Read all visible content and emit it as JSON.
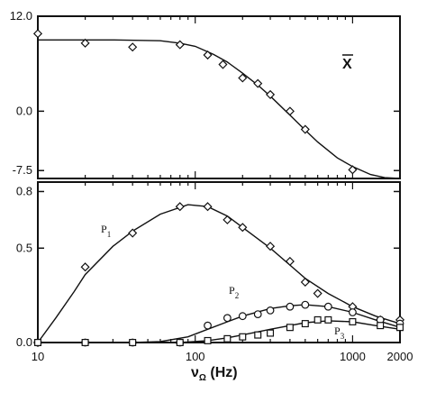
{
  "chart_data": [
    {
      "panel": "top",
      "type": "scatter",
      "x_scale": "log",
      "xlim": [
        10,
        2000
      ],
      "ylim": [
        -8.5,
        12.0
      ],
      "y_ticks": [
        {
          "value": 12.0,
          "label": "12.0"
        },
        {
          "value": 0.0,
          "label": "0.0"
        },
        {
          "value": -7.5,
          "label": "-7.5"
        }
      ],
      "series": [
        {
          "name": "X̄",
          "marker": "diamond",
          "points": [
            {
              "x": 10,
              "y": 9.8
            },
            {
              "x": 20,
              "y": 8.6
            },
            {
              "x": 40,
              "y": 8.1
            },
            {
              "x": 80,
              "y": 8.4
            },
            {
              "x": 120,
              "y": 7.1
            },
            {
              "x": 150,
              "y": 5.9
            },
            {
              "x": 200,
              "y": 4.2
            },
            {
              "x": 250,
              "y": 3.5
            },
            {
              "x": 300,
              "y": 2.1
            },
            {
              "x": 400,
              "y": 0.0
            },
            {
              "x": 500,
              "y": -2.3
            },
            {
              "x": 1000,
              "y": -7.4
            }
          ],
          "fit_curve": [
            {
              "x": 10,
              "y": 9.0
            },
            {
              "x": 30,
              "y": 9.0
            },
            {
              "x": 60,
              "y": 8.9
            },
            {
              "x": 80,
              "y": 8.6
            },
            {
              "x": 100,
              "y": 8.2
            },
            {
              "x": 130,
              "y": 7.2
            },
            {
              "x": 160,
              "y": 6.2
            },
            {
              "x": 200,
              "y": 4.8
            },
            {
              "x": 250,
              "y": 3.3
            },
            {
              "x": 300,
              "y": 1.9
            },
            {
              "x": 400,
              "y": -0.5
            },
            {
              "x": 500,
              "y": -2.4
            },
            {
              "x": 600,
              "y": -3.9
            },
            {
              "x": 800,
              "y": -5.9
            },
            {
              "x": 1000,
              "y": -7.0
            },
            {
              "x": 1300,
              "y": -8.0
            },
            {
              "x": 1600,
              "y": -8.4
            },
            {
              "x": 2000,
              "y": -8.5
            }
          ]
        }
      ]
    },
    {
      "panel": "bottom",
      "type": "scatter",
      "x_scale": "log",
      "xlim": [
        10,
        2000
      ],
      "ylim": [
        0.0,
        0.85
      ],
      "y_ticks": [
        {
          "value": 0.8,
          "label": "0.8"
        },
        {
          "value": 0.5,
          "label": "0.5"
        },
        {
          "value": 0.0,
          "label": "0.0"
        }
      ],
      "x_ticks": [
        {
          "value": 10,
          "label": "10"
        },
        {
          "value": 100,
          "label": "100"
        },
        {
          "value": 1000,
          "label": "1000"
        },
        {
          "value": 2000,
          "label": "2000"
        }
      ],
      "xlabel": "νΩ (Hz)",
      "series": [
        {
          "name": "P1",
          "marker": "diamond",
          "points": [
            {
              "x": 10,
              "y": 0.0
            },
            {
              "x": 20,
              "y": 0.4
            },
            {
              "x": 40,
              "y": 0.58
            },
            {
              "x": 80,
              "y": 0.72
            },
            {
              "x": 120,
              "y": 0.72
            },
            {
              "x": 160,
              "y": 0.65
            },
            {
              "x": 200,
              "y": 0.61
            },
            {
              "x": 300,
              "y": 0.51
            },
            {
              "x": 400,
              "y": 0.43
            },
            {
              "x": 500,
              "y": 0.32
            },
            {
              "x": 600,
              "y": 0.26
            },
            {
              "x": 1000,
              "y": 0.19
            },
            {
              "x": 1500,
              "y": 0.12
            },
            {
              "x": 2000,
              "y": 0.12
            }
          ],
          "fit_curve": [
            {
              "x": 10,
              "y": 0.0
            },
            {
              "x": 13,
              "y": 0.13
            },
            {
              "x": 17,
              "y": 0.27
            },
            {
              "x": 20,
              "y": 0.36
            },
            {
              "x": 30,
              "y": 0.51
            },
            {
              "x": 40,
              "y": 0.59
            },
            {
              "x": 60,
              "y": 0.68
            },
            {
              "x": 90,
              "y": 0.73
            },
            {
              "x": 120,
              "y": 0.72
            },
            {
              "x": 160,
              "y": 0.67
            },
            {
              "x": 200,
              "y": 0.61
            },
            {
              "x": 300,
              "y": 0.5
            },
            {
              "x": 400,
              "y": 0.41
            },
            {
              "x": 500,
              "y": 0.34
            },
            {
              "x": 700,
              "y": 0.26
            },
            {
              "x": 1000,
              "y": 0.19
            },
            {
              "x": 1400,
              "y": 0.14
            },
            {
              "x": 2000,
              "y": 0.1
            }
          ]
        },
        {
          "name": "P2",
          "marker": "circle",
          "points": [
            {
              "x": 10,
              "y": 0.0
            },
            {
              "x": 20,
              "y": 0.0
            },
            {
              "x": 40,
              "y": 0.0
            },
            {
              "x": 80,
              "y": 0.0
            },
            {
              "x": 120,
              "y": 0.09
            },
            {
              "x": 160,
              "y": 0.13
            },
            {
              "x": 200,
              "y": 0.14
            },
            {
              "x": 250,
              "y": 0.15
            },
            {
              "x": 300,
              "y": 0.17
            },
            {
              "x": 400,
              "y": 0.19
            },
            {
              "x": 500,
              "y": 0.2
            },
            {
              "x": 700,
              "y": 0.19
            },
            {
              "x": 1000,
              "y": 0.16
            },
            {
              "x": 1500,
              "y": 0.12
            },
            {
              "x": 2000,
              "y": 0.1
            }
          ],
          "fit_curve": [
            {
              "x": 40,
              "y": 0.0
            },
            {
              "x": 60,
              "y": 0.005
            },
            {
              "x": 90,
              "y": 0.03
            },
            {
              "x": 120,
              "y": 0.07
            },
            {
              "x": 160,
              "y": 0.11
            },
            {
              "x": 200,
              "y": 0.14
            },
            {
              "x": 300,
              "y": 0.18
            },
            {
              "x": 400,
              "y": 0.195
            },
            {
              "x": 500,
              "y": 0.2
            },
            {
              "x": 700,
              "y": 0.19
            },
            {
              "x": 1000,
              "y": 0.16
            },
            {
              "x": 1400,
              "y": 0.12
            },
            {
              "x": 2000,
              "y": 0.08
            }
          ]
        },
        {
          "name": "P3",
          "marker": "square",
          "points": [
            {
              "x": 10,
              "y": 0.0
            },
            {
              "x": 20,
              "y": 0.0
            },
            {
              "x": 40,
              "y": 0.0
            },
            {
              "x": 80,
              "y": 0.0
            },
            {
              "x": 120,
              "y": 0.01
            },
            {
              "x": 160,
              "y": 0.02
            },
            {
              "x": 200,
              "y": 0.03
            },
            {
              "x": 250,
              "y": 0.04
            },
            {
              "x": 300,
              "y": 0.05
            },
            {
              "x": 400,
              "y": 0.08
            },
            {
              "x": 500,
              "y": 0.1
            },
            {
              "x": 600,
              "y": 0.12
            },
            {
              "x": 700,
              "y": 0.12
            },
            {
              "x": 1000,
              "y": 0.11
            },
            {
              "x": 1500,
              "y": 0.09
            },
            {
              "x": 2000,
              "y": 0.08
            }
          ],
          "fit_curve": [
            {
              "x": 80,
              "y": 0.0
            },
            {
              "x": 120,
              "y": 0.01
            },
            {
              "x": 160,
              "y": 0.025
            },
            {
              "x": 200,
              "y": 0.04
            },
            {
              "x": 300,
              "y": 0.07
            },
            {
              "x": 400,
              "y": 0.09
            },
            {
              "x": 500,
              "y": 0.105
            },
            {
              "x": 700,
              "y": 0.115
            },
            {
              "x": 1000,
              "y": 0.11
            },
            {
              "x": 1400,
              "y": 0.09
            },
            {
              "x": 2000,
              "y": 0.07
            }
          ]
        }
      ]
    }
  ],
  "labels": {
    "xbar": "X",
    "p1": {
      "main": "P",
      "sub": "1"
    },
    "p2": {
      "main": "P",
      "sub": "2"
    },
    "p3": {
      "main": "P",
      "sub": "3"
    },
    "xlabel": {
      "nu": "ν",
      "sub": "Ω",
      "unit": " (Hz)"
    }
  }
}
